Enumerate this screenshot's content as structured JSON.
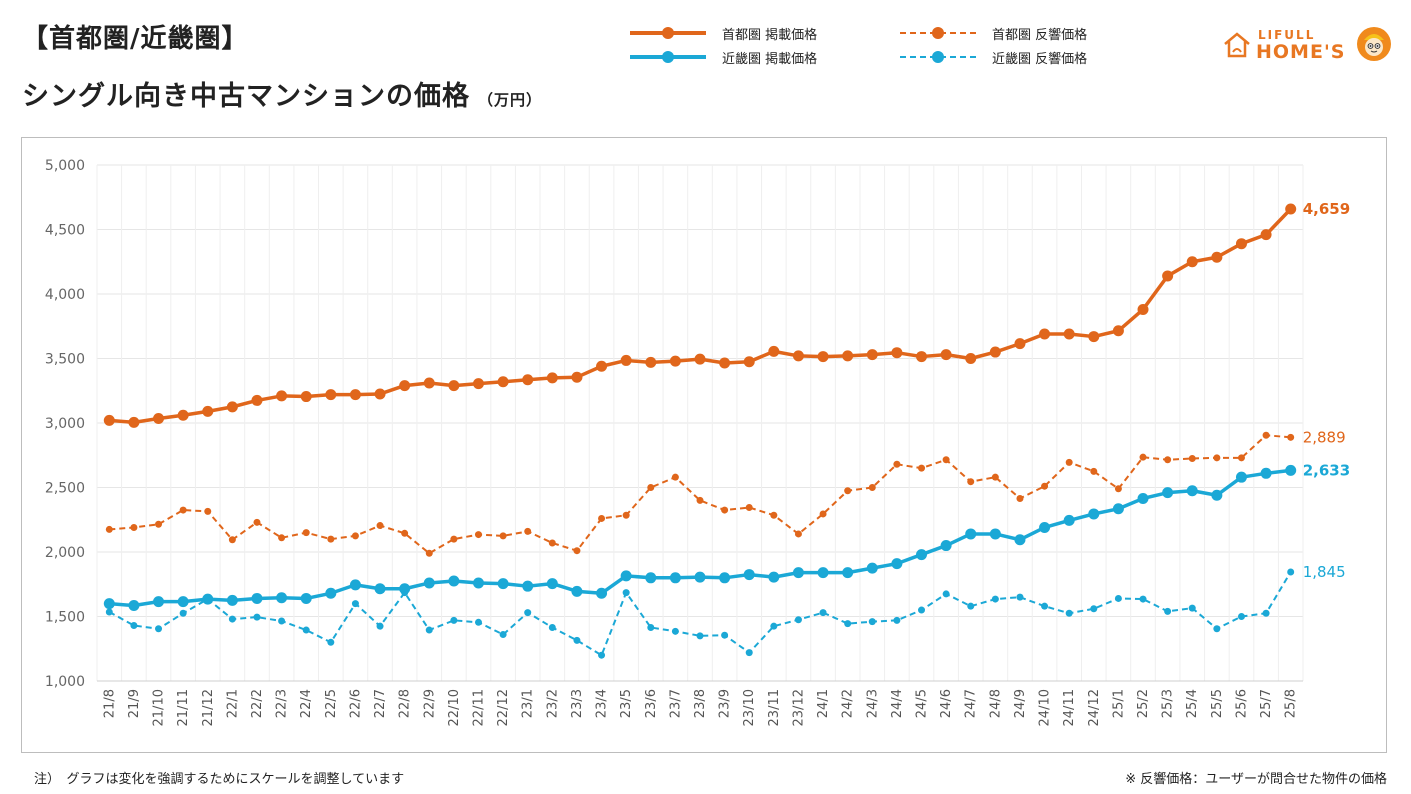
{
  "title_line1": "【首都圏/近畿圏】",
  "title_line2": "シングル向き中古マンションの価格",
  "title_unit": "（万円）",
  "legend": [
    {
      "label": "首都圏 掲載価格",
      "color": "#e0661b",
      "style": "solid"
    },
    {
      "label": "近畿圏 掲載価格",
      "color": "#1ba8d6",
      "style": "solid"
    },
    {
      "label": "首都圏 反響価格",
      "color": "#e0661b",
      "style": "dashed"
    },
    {
      "label": "近畿圏 反響価格",
      "color": "#1ba8d6",
      "style": "dashed"
    }
  ],
  "logo": {
    "line1": "LIFULL",
    "line2": "HOME'S"
  },
  "note_left": "注）　グラフは変化を強調するためにスケールを調整しています",
  "note_right": "※ 反響価格：ユーザーが問合せた物件の価格",
  "chart_data": {
    "type": "line",
    "ylim": [
      1000,
      5000
    ],
    "yticks": [
      1000,
      1500,
      2000,
      2500,
      3000,
      3500,
      4000,
      4500,
      5000
    ],
    "ytick_labels": [
      "1,000",
      "1,500",
      "2,000",
      "2,500",
      "3,000",
      "3,500",
      "4,000",
      "4,500",
      "5,000"
    ],
    "grid": true,
    "categories": [
      "21/8",
      "21/9",
      "21/10",
      "21/11",
      "21/12",
      "22/1",
      "22/2",
      "22/3",
      "22/4",
      "22/5",
      "22/6",
      "22/7",
      "22/8",
      "22/9",
      "22/10",
      "22/11",
      "22/12",
      "23/1",
      "23/2",
      "23/3",
      "23/4",
      "23/5",
      "23/6",
      "23/7",
      "23/8",
      "23/9",
      "23/10",
      "23/11",
      "23/12",
      "24/1",
      "24/2",
      "24/3",
      "24/4",
      "24/5",
      "24/6",
      "24/7",
      "24/8",
      "24/9",
      "24/10",
      "24/11",
      "24/12",
      "25/1",
      "25/2",
      "25/3",
      "25/4",
      "25/5",
      "25/6",
      "25/7",
      "25/8"
    ],
    "series": [
      {
        "name": "首都圏 掲載価格",
        "color": "#e0661b",
        "style": "solid",
        "end_label": "4,659",
        "values": [
          3020,
          3005,
          3035,
          3060,
          3090,
          3125,
          3175,
          3210,
          3205,
          3220,
          3220,
          3225,
          3290,
          3310,
          3290,
          3305,
          3320,
          3335,
          3350,
          3355,
          3440,
          3485,
          3470,
          3480,
          3495,
          3465,
          3475,
          3555,
          3520,
          3515,
          3520,
          3530,
          3545,
          3515,
          3530,
          3500,
          3550,
          3615,
          3690,
          3690,
          3670,
          3715,
          3880,
          4140,
          4250,
          4285,
          4390,
          4460,
          4659
        ]
      },
      {
        "name": "首都圏 反響価格",
        "color": "#e0661b",
        "style": "dashed",
        "end_label": "2,889",
        "values": [
          2175,
          2190,
          2215,
          2325,
          2315,
          2095,
          2230,
          2110,
          2150,
          2100,
          2125,
          2205,
          2145,
          1990,
          2100,
          2135,
          2125,
          2160,
          2070,
          2010,
          2260,
          2285,
          2500,
          2580,
          2400,
          2325,
          2345,
          2285,
          2140,
          2295,
          2475,
          2500,
          2680,
          2650,
          2715,
          2545,
          2580,
          2415,
          2510,
          2695,
          2625,
          2490,
          2735,
          2715,
          2725,
          2730,
          2730,
          2905,
          2889
        ]
      },
      {
        "name": "近畿圏 掲載価格",
        "color": "#1ba8d6",
        "style": "solid",
        "end_label": "2,633",
        "values": [
          1600,
          1585,
          1615,
          1615,
          1635,
          1625,
          1640,
          1645,
          1640,
          1680,
          1745,
          1715,
          1715,
          1760,
          1775,
          1760,
          1755,
          1735,
          1755,
          1695,
          1680,
          1815,
          1800,
          1800,
          1805,
          1800,
          1825,
          1805,
          1840,
          1840,
          1840,
          1875,
          1910,
          1980,
          2050,
          2140,
          2140,
          2095,
          2190,
          2245,
          2295,
          2335,
          2415,
          2460,
          2475,
          2440,
          2580,
          2610,
          2633
        ]
      },
      {
        "name": "近畿圏 反響価格",
        "color": "#1ba8d6",
        "style": "dashed",
        "end_label": "1,845",
        "values": [
          1535,
          1430,
          1405,
          1525,
          1635,
          1480,
          1495,
          1465,
          1395,
          1300,
          1600,
          1425,
          1685,
          1395,
          1470,
          1455,
          1360,
          1530,
          1415,
          1315,
          1200,
          1685,
          1415,
          1385,
          1350,
          1355,
          1220,
          1425,
          1475,
          1530,
          1445,
          1460,
          1470,
          1550,
          1675,
          1580,
          1635,
          1650,
          1580,
          1525,
          1560,
          1640,
          1635,
          1540,
          1565,
          1405,
          1500,
          1525,
          1845
        ]
      }
    ]
  }
}
